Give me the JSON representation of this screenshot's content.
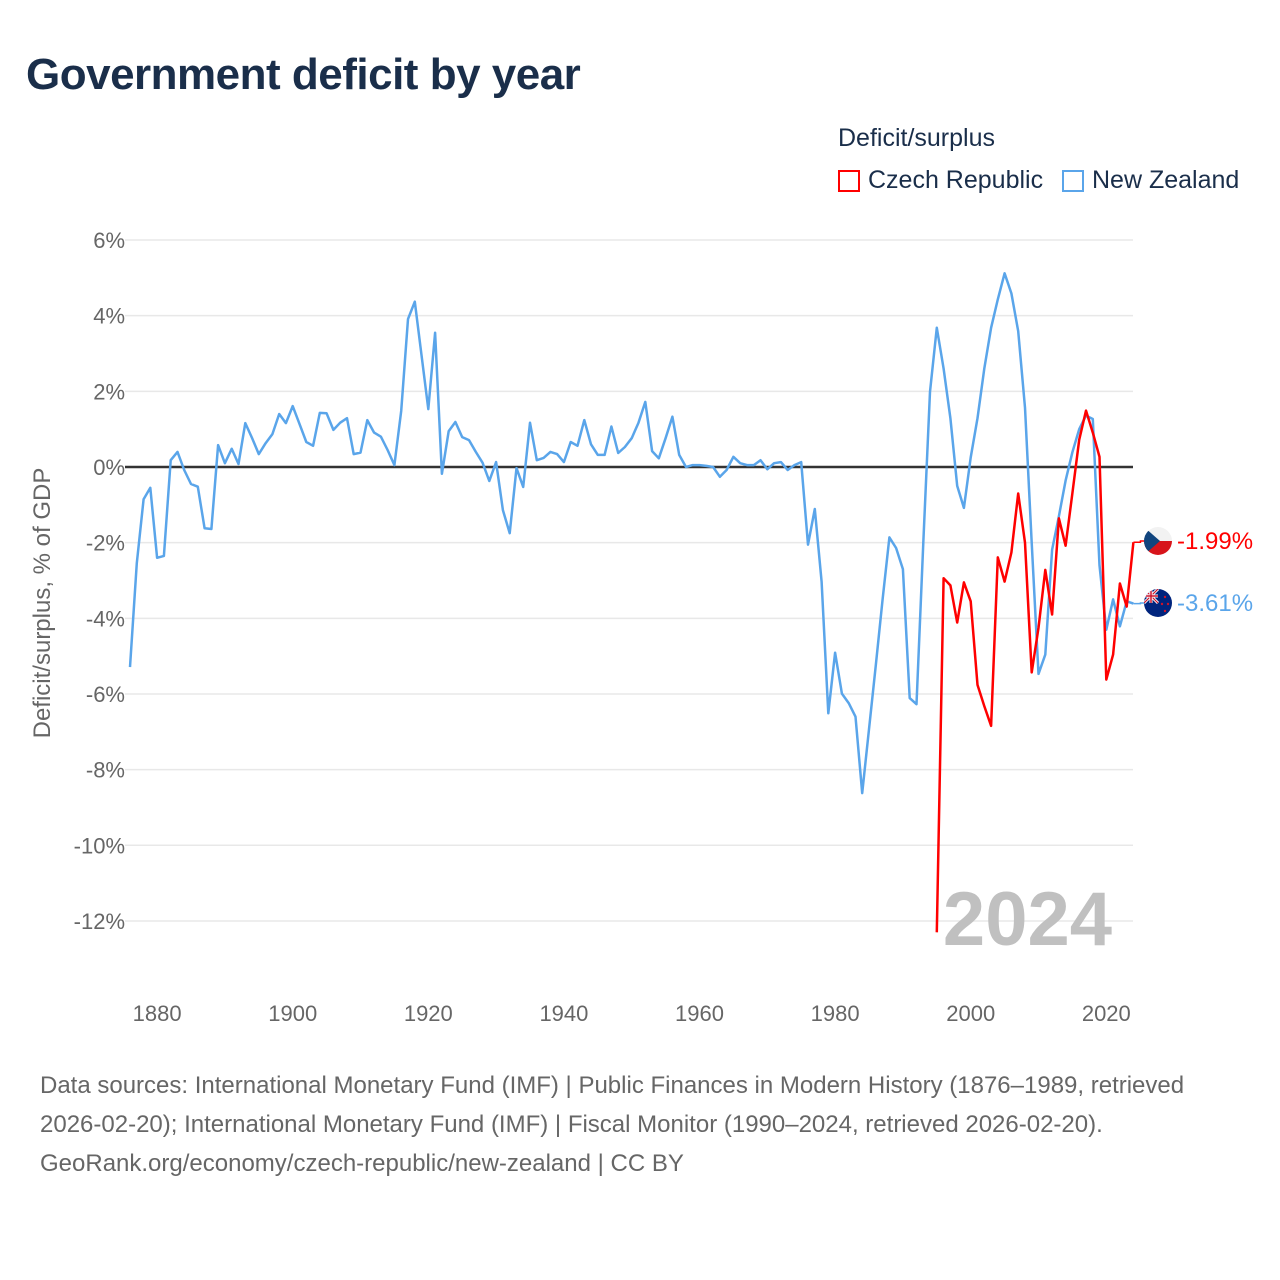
{
  "title": "Government deficit by year",
  "legend": {
    "title": "Deficit/surplus",
    "items": [
      {
        "label": "Czech Republic",
        "color": "#ff0000"
      },
      {
        "label": "New Zealand",
        "color": "#5aa5ea"
      }
    ]
  },
  "current_year": "2024",
  "end_labels": {
    "czech": "-1.99%",
    "nz": "-3.61%"
  },
  "footer": {
    "sources": "Data sources: International Monetary Fund (IMF) | Public Finances in Modern History (1876–1989, retrieved 2026-02-20); International Monetary Fund (IMF) | Fiscal Monitor (1990–2024, retrieved 2026-02-20).",
    "credit": "GeoRank.org/economy/czech-republic/new-zealand | CC BY"
  },
  "chart_data": {
    "type": "line",
    "title": "Government deficit by year",
    "xlabel": "",
    "ylabel": "Deficit/surplus, % of GDP",
    "xlim": [
      1876,
      2024
    ],
    "ylim": [
      -12,
      6
    ],
    "x_ticks": [
      "1880",
      "1900",
      "1920",
      "1940",
      "1960",
      "1980",
      "2000",
      "2020"
    ],
    "y_ticks": [
      "6%",
      "4%",
      "2%",
      "0%",
      "-2%",
      "-4%",
      "-6%",
      "-8%",
      "-10%",
      "-12%"
    ],
    "grid": true,
    "legend_position": "top-right",
    "series": [
      {
        "name": "Czech Republic",
        "color": "#ff0000",
        "start_year": 1995,
        "values": [
          -12.3,
          -2.94,
          -3.13,
          -4.11,
          -3.05,
          -3.55,
          -5.76,
          -6.32,
          -6.84,
          -2.39,
          -3.03,
          -2.26,
          -0.7,
          -2.0,
          -5.43,
          -4.25,
          -2.72,
          -3.9,
          -1.36,
          -2.08,
          -0.69,
          0.72,
          1.49,
          0.91,
          0.27,
          -5.62,
          -4.96,
          -3.08,
          -3.69,
          -1.99
        ]
      },
      {
        "name": "New Zealand",
        "color": "#5aa5ea",
        "start_year": 1876,
        "values": [
          -5.29,
          -2.54,
          -0.85,
          -0.55,
          -2.4,
          -2.35,
          0.18,
          0.4,
          -0.08,
          -0.45,
          -0.52,
          -1.62,
          -1.64,
          0.58,
          0.1,
          0.48,
          0.08,
          1.16,
          0.77,
          0.34,
          0.63,
          0.87,
          1.4,
          1.16,
          1.61,
          1.14,
          0.66,
          0.56,
          1.43,
          1.42,
          0.98,
          1.17,
          1.29,
          0.34,
          0.38,
          1.24,
          0.91,
          0.8,
          0.45,
          0.05,
          1.48,
          3.91,
          4.37,
          2.96,
          1.53,
          3.55,
          -0.18,
          0.95,
          1.19,
          0.79,
          0.71,
          0.4,
          0.11,
          -0.37,
          0.13,
          -1.14,
          -1.75,
          -0.03,
          -0.53,
          1.17,
          0.18,
          0.24,
          0.4,
          0.34,
          0.13,
          0.66,
          0.56,
          1.24,
          0.6,
          0.32,
          0.32,
          1.07,
          0.37,
          0.53,
          0.76,
          1.17,
          1.72,
          0.42,
          0.23,
          0.76,
          1.33,
          0.32,
          0.0,
          0.05,
          0.05,
          0.03,
          0.0,
          -0.26,
          -0.08,
          0.27,
          0.1,
          0.05,
          0.05,
          0.18,
          -0.06,
          0.1,
          0.13,
          -0.08,
          0.05,
          0.13,
          -2.05,
          -1.11,
          -3.03,
          -6.51,
          -4.91,
          -5.99,
          -6.24,
          -6.6,
          -8.62,
          -6.93,
          -5.24,
          -3.5,
          -1.86,
          -2.14,
          -2.7,
          -6.11,
          -6.27,
          -2.0,
          1.99,
          3.68,
          2.6,
          1.29,
          -0.5,
          -1.08,
          0.25,
          1.29,
          2.6,
          3.68,
          4.43,
          5.12,
          4.59,
          3.59,
          1.57,
          -2.0,
          -5.47,
          -4.96,
          -2.19,
          -1.3,
          -0.36,
          0.39,
          1.0,
          1.36,
          1.27,
          -2.6,
          -4.3,
          -3.5,
          -4.21,
          -3.55,
          -3.61
        ]
      }
    ]
  }
}
